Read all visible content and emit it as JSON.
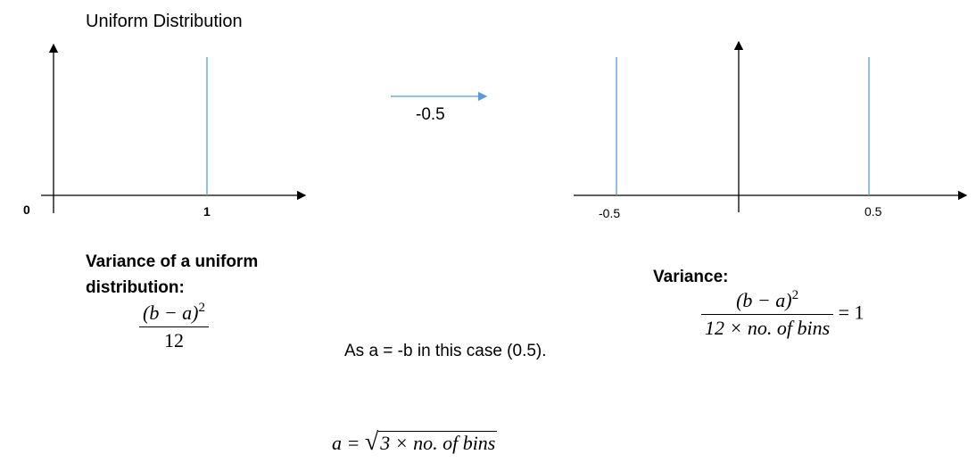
{
  "left_plot": {
    "title": "Uniform Distribution",
    "origin_label": "0",
    "tick_label": "1"
  },
  "shift": {
    "label": "-0.5"
  },
  "right_plot": {
    "left_tick_label": "-0.5",
    "right_tick_label": "0.5"
  },
  "variance_uniform": {
    "heading_line1": "Variance of a uniform",
    "heading_line2": "distribution:",
    "numerator_base": "(b − a)",
    "numerator_exp": "2",
    "denominator": "12"
  },
  "variance_bins": {
    "heading": "Variance:",
    "numerator_base": "(b − a)",
    "numerator_exp": "2",
    "denominator": "12 × no. of bins",
    "equals": "= 1"
  },
  "note": {
    "text": "As a = -b in this case (0.5)."
  },
  "result": {
    "lhs": "a =",
    "radicand": "3 × no. of bins"
  },
  "colors": {
    "axis": "#000000",
    "spike": "#5b9bd5",
    "arrow": "#5b9bd5"
  }
}
